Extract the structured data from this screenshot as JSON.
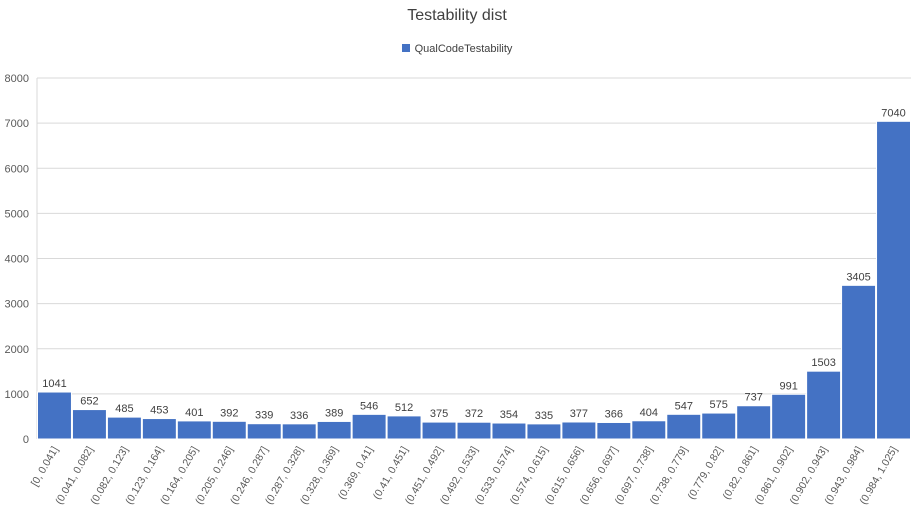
{
  "chart_data": {
    "type": "bar",
    "title": "Testability dist",
    "xlabel": "",
    "ylabel": "",
    "ylim": [
      0,
      8000
    ],
    "yticks": [
      "0",
      "1000",
      "2000",
      "3000",
      "4000",
      "5000",
      "6000",
      "7000",
      "8000"
    ],
    "grid": true,
    "legend_position": "top",
    "categories": [
      "[0, 0.041]",
      "(0.041, 0.082]",
      "(0.082, 0.123]",
      "(0.123, 0.164]",
      "(0.164, 0.205]",
      "(0.205, 0.246]",
      "(0.246, 0.287]",
      "(0.287, 0.328]",
      "(0.328, 0.369]",
      "(0.369, 0.41]",
      "(0.41, 0.451]",
      "(0.451, 0.492]",
      "(0.492, 0.533]",
      "(0.533, 0.574]",
      "(0.574, 0.615]",
      "(0.615, 0.656]",
      "(0.656, 0.697]",
      "(0.697, 0.738]",
      "(0.738, 0.779]",
      "(0.779, 0.82]",
      "(0.82, 0.861]",
      "(0.861, 0.902]",
      "(0.902, 0.943]",
      "(0.943, 0.984]",
      "(0.984, 1.025]"
    ],
    "series": [
      {
        "name": "QualCodeTestability",
        "color": "#4472c4",
        "values": [
          1041,
          652,
          485,
          453,
          401,
          392,
          339,
          336,
          389,
          546,
          512,
          375,
          372,
          354,
          335,
          377,
          366,
          404,
          547,
          575,
          737,
          991,
          1503,
          3405,
          7040
        ]
      }
    ]
  }
}
